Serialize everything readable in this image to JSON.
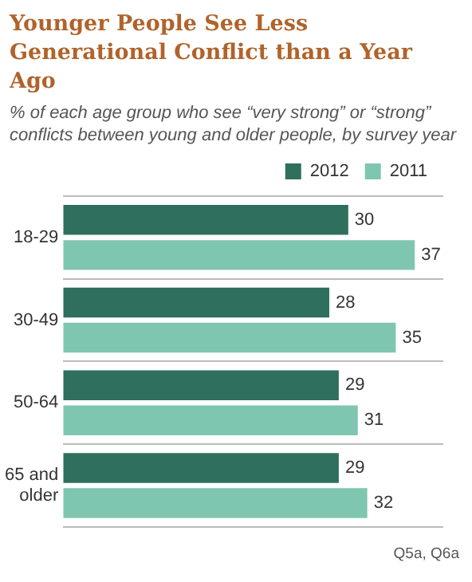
{
  "chart_data": {
    "type": "bar",
    "orientation": "horizontal",
    "title": "Younger People See Less Generational Conflict than a Year Ago",
    "subtitle": "% of each age group who see “very strong” or “strong” conflicts between young and older people, by survey year",
    "categories": [
      "18-29",
      "30-49",
      "50-64",
      "65 and older"
    ],
    "series": [
      {
        "name": "2012",
        "color": "#2e6f5e",
        "values": [
          30,
          28,
          29,
          29
        ]
      },
      {
        "name": "2011",
        "color": "#7fc6b0",
        "values": [
          37,
          35,
          31,
          32
        ]
      }
    ],
    "data_labels": true,
    "grid": "y",
    "legend": "top right",
    "annotations": [
      "Q5a, Q6a"
    ]
  }
}
